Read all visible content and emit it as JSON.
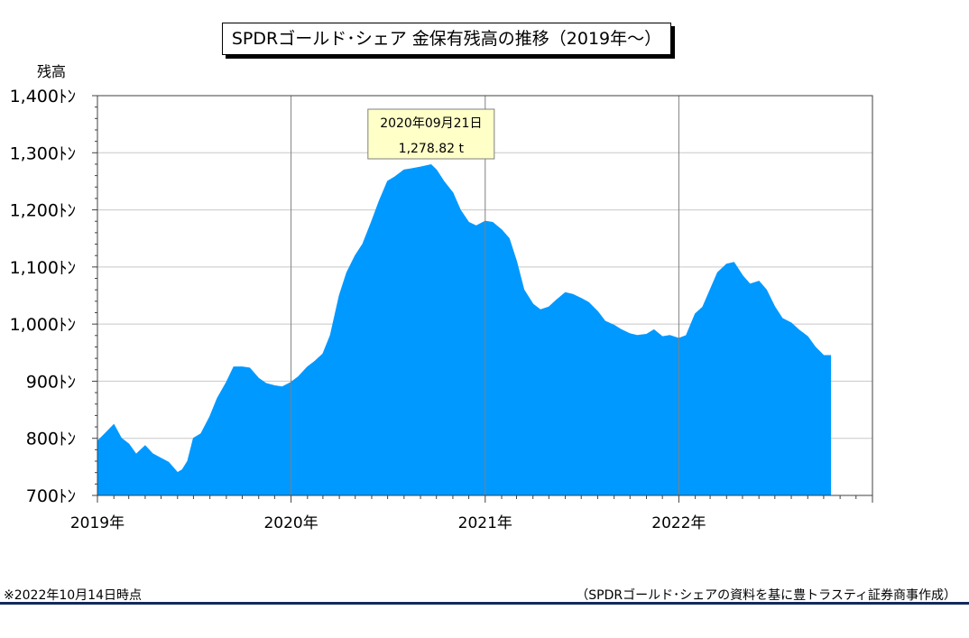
{
  "footnote_left": "※2022年10月14日時点",
  "footnote_right": "（SPDRゴールド･シェアの資料を基に豊トラスティ証券商事作成）",
  "chart_data": {
    "type": "area",
    "title": "SPDRゴールド･シェア 金保有残高の推移（2019年～）",
    "ylabel": "残高",
    "ylim": [
      700,
      1400
    ],
    "yticks": [
      700,
      800,
      900,
      1000,
      1100,
      1200,
      1300,
      1400
    ],
    "ytick_labels": [
      "700ﾄﾝ",
      "800ﾄﾝ",
      "900ﾄﾝ",
      "1,000ﾄﾝ",
      "1,100ﾄﾝ",
      "1,200ﾄﾝ",
      "1,300ﾄﾝ",
      "1,400ﾄﾝ"
    ],
    "xlim": [
      "2019-01-01",
      "2023-01-01"
    ],
    "xticks": [
      "2019-01-01",
      "2020-01-01",
      "2021-01-01",
      "2022-01-01"
    ],
    "xtick_labels": [
      "2019年",
      "2020年",
      "2021年",
      "2022年"
    ],
    "grid": true,
    "fill_color": "#0099ff",
    "annotation": {
      "date": "2020-09-21",
      "date_label": "2020年09月21日",
      "value": 1278.82,
      "value_label": "1,278.82 t"
    },
    "series": [
      {
        "x": [
          "2019-01-01",
          "2019-01-15",
          "2019-02-01",
          "2019-02-15",
          "2019-03-01",
          "2019-03-15",
          "2019-04-01",
          "2019-04-15",
          "2019-05-01",
          "2019-05-15",
          "2019-06-01",
          "2019-06-10",
          "2019-06-20",
          "2019-07-01",
          "2019-07-15",
          "2019-08-01",
          "2019-08-15",
          "2019-09-01",
          "2019-09-15",
          "2019-10-01",
          "2019-10-15",
          "2019-11-01",
          "2019-11-15",
          "2019-12-01",
          "2019-12-15",
          "2020-01-01",
          "2020-01-15",
          "2020-02-01",
          "2020-02-15",
          "2020-03-01",
          "2020-03-15",
          "2020-04-01",
          "2020-04-15",
          "2020-05-01",
          "2020-05-15",
          "2020-06-01",
          "2020-06-15",
          "2020-07-01",
          "2020-07-15",
          "2020-08-01",
          "2020-08-15",
          "2020-09-01",
          "2020-09-21",
          "2020-10-01",
          "2020-10-15",
          "2020-11-01",
          "2020-11-15",
          "2020-12-01",
          "2020-12-15",
          "2021-01-01",
          "2021-01-15",
          "2021-02-01",
          "2021-02-15",
          "2021-03-01",
          "2021-03-15",
          "2021-04-01",
          "2021-04-15",
          "2021-05-01",
          "2021-05-15",
          "2021-06-01",
          "2021-06-15",
          "2021-07-01",
          "2021-07-15",
          "2021-08-01",
          "2021-08-15",
          "2021-09-01",
          "2021-09-15",
          "2021-10-01",
          "2021-10-15",
          "2021-11-01",
          "2021-11-15",
          "2021-12-01",
          "2021-12-15",
          "2022-01-01",
          "2022-01-15",
          "2022-02-01",
          "2022-02-15",
          "2022-03-01",
          "2022-03-15",
          "2022-04-01",
          "2022-04-15",
          "2022-05-01",
          "2022-05-15",
          "2022-06-01",
          "2022-06-15",
          "2022-07-01",
          "2022-07-15",
          "2022-08-01",
          "2022-08-15",
          "2022-09-01",
          "2022-09-15",
          "2022-10-01",
          "2022-10-14"
        ],
        "values": [
          795,
          808,
          824,
          800,
          790,
          772,
          787,
          773,
          765,
          758,
          740,
          745,
          760,
          800,
          808,
          838,
          870,
          898,
          925,
          925,
          923,
          905,
          896,
          892,
          890,
          898,
          908,
          925,
          935,
          948,
          980,
          1050,
          1090,
          1120,
          1140,
          1180,
          1215,
          1250,
          1258,
          1270,
          1272,
          1275,
          1279,
          1270,
          1250,
          1230,
          1200,
          1178,
          1172,
          1180,
          1178,
          1165,
          1150,
          1110,
          1060,
          1035,
          1025,
          1030,
          1042,
          1055,
          1052,
          1045,
          1038,
          1022,
          1005,
          998,
          990,
          983,
          980,
          982,
          990,
          978,
          980,
          975,
          980,
          1018,
          1030,
          1060,
          1090,
          1105,
          1108,
          1085,
          1070,
          1075,
          1060,
          1030,
          1010,
          1002,
          990,
          978,
          960,
          945,
          945
        ]
      }
    ]
  }
}
